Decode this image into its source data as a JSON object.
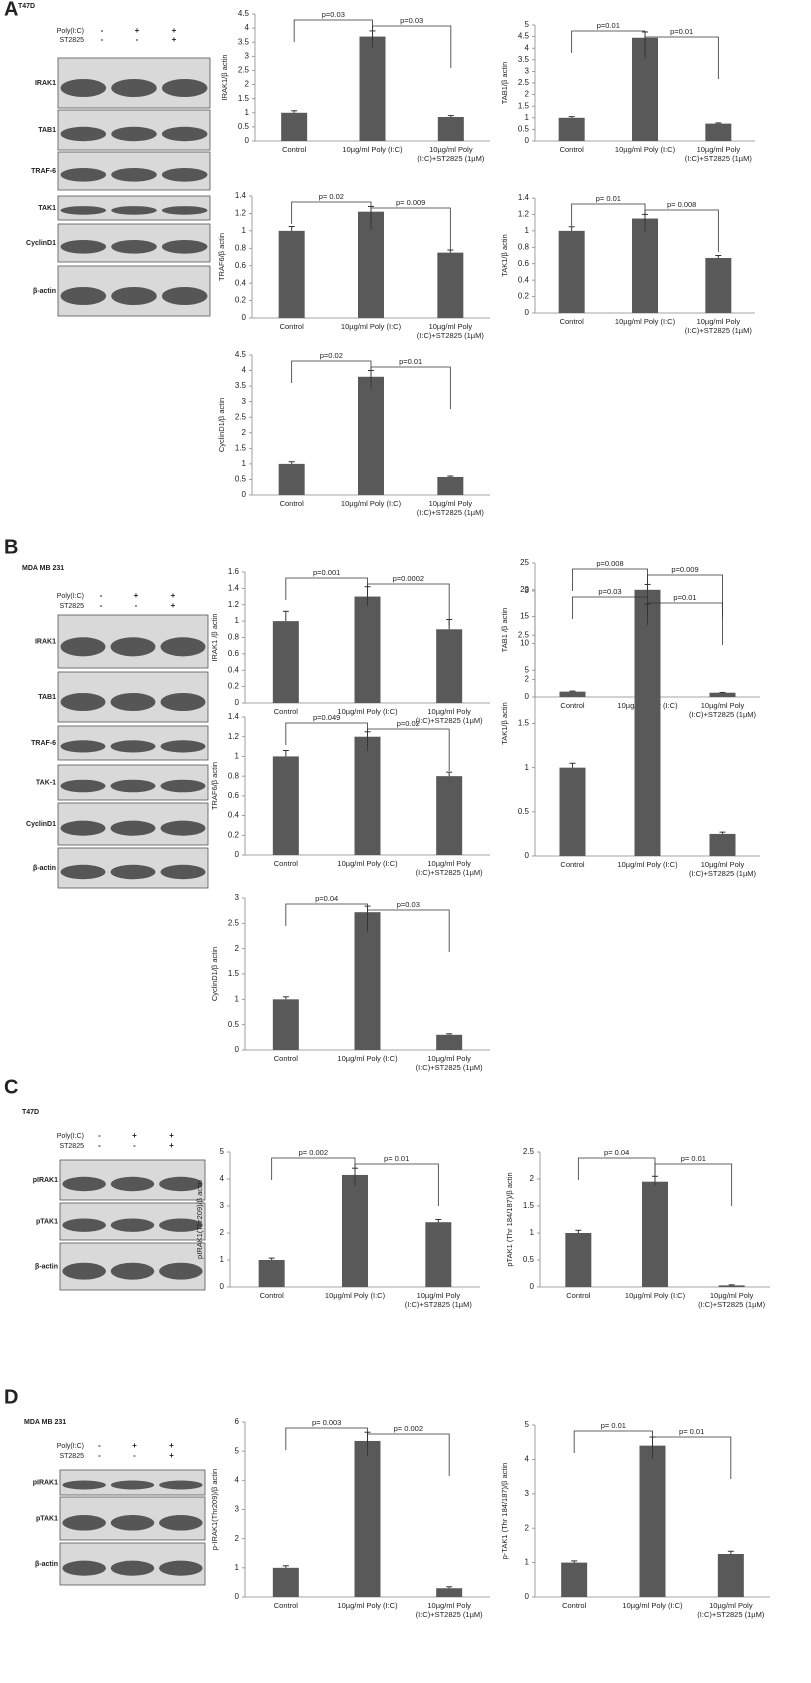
{
  "panels": [
    {
      "letter": "A",
      "cell_line": "T47D",
      "treatments": [
        {
          "name": "Poly(I:C)",
          "signs": [
            "-",
            "+",
            "+"
          ]
        },
        {
          "name": "ST2825",
          "signs": [
            "-",
            "-",
            "+"
          ]
        }
      ],
      "blot_rows": [
        "IRAK1",
        "TAB1",
        "TRAF-6",
        "TAK1",
        "CyclinD1",
        "β-actin"
      ]
    },
    {
      "letter": "B",
      "cell_line": "MDA MB 231",
      "treatments": [
        {
          "name": "Poly(I:C)",
          "signs": [
            "-",
            "+",
            "+"
          ]
        },
        {
          "name": "ST2825",
          "signs": [
            "-",
            "-",
            "+"
          ]
        }
      ],
      "blot_rows": [
        "IRAK1",
        "TAB1",
        "TRAF-6",
        "TAK-1",
        "CyclinD1",
        "β-actin"
      ]
    },
    {
      "letter": "C",
      "cell_line": "T47D",
      "treatments": [
        {
          "name": "Poly(I:C)",
          "signs": [
            "-",
            "+",
            "+"
          ]
        },
        {
          "name": "ST2825",
          "signs": [
            "-",
            "-",
            "+"
          ]
        }
      ],
      "blot_rows": [
        "pIRAK1",
        "pTAK1",
        "β-actin"
      ]
    },
    {
      "letter": "D",
      "cell_line": "MDA MB 231",
      "treatments": [
        {
          "name": "Poly(I:C)",
          "signs": [
            "-",
            "+",
            "+"
          ]
        },
        {
          "name": "ST2825",
          "signs": [
            "-",
            "-",
            "+"
          ]
        }
      ],
      "blot_rows": [
        "pIRAK1",
        "pTAK1",
        "β-actin"
      ]
    }
  ],
  "chart_data": [
    {
      "type": "bar",
      "y_label": "IRAK1/β actin",
      "categories": [
        "Control",
        "10µg/ml Poly (I:C)",
        "10µg/ml Poly (I:C)+ST2825 (1µM)"
      ],
      "values": [
        1.0,
        3.7,
        0.85
      ],
      "errors": [
        0.07,
        0.2,
        0.05
      ],
      "color": "#595959",
      "ylim": [
        0,
        4.5
      ],
      "yticks": [
        0,
        0.5,
        1,
        1.5,
        2,
        2.5,
        3,
        3.5,
        4,
        4.5
      ],
      "annotations": [
        "p=0.03",
        "p=0.03"
      ]
    },
    {
      "type": "bar",
      "y_label": "TAB1/β actin",
      "categories": [
        "Control",
        "10µg/ml Poly (I:C)",
        "10µg/ml Poly (I:C)+ST2825 (1µM)"
      ],
      "values": [
        1.0,
        4.45,
        0.75
      ],
      "errors": [
        0.05,
        0.25,
        0.03
      ],
      "color": "#595959",
      "ylim": [
        0,
        5
      ],
      "yticks": [
        0,
        0.5,
        1,
        1.5,
        2,
        2.5,
        3,
        3.5,
        4,
        4.5,
        5
      ],
      "annotations": [
        "p=0.01",
        "p=0.01"
      ]
    },
    {
      "type": "bar",
      "y_label": "TRAF6/β actin",
      "categories": [
        "Control",
        "10µg/ml Poly (I:C)",
        "10µg/ml Poly (I:C)+ST2825 (1µM)"
      ],
      "values": [
        1.0,
        1.22,
        0.75
      ],
      "errors": [
        0.05,
        0.06,
        0.03
      ],
      "color": "#595959",
      "ylim": [
        0,
        1.4
      ],
      "yticks": [
        0,
        0.2,
        0.4,
        0.6,
        0.8,
        1,
        1.2,
        1.4
      ],
      "annotations": [
        "p= 0.02",
        "p= 0.009"
      ]
    },
    {
      "type": "bar",
      "y_label": "TAK1/β actin",
      "categories": [
        "Control",
        "10µg/ml Poly (I:C)",
        "10µg/ml Poly (I:C)+ST2825 (1µM)"
      ],
      "values": [
        1.0,
        1.15,
        0.67
      ],
      "errors": [
        0.05,
        0.05,
        0.03
      ],
      "color": "#595959",
      "ylim": [
        0,
        1.4
      ],
      "yticks": [
        0,
        0.2,
        0.4,
        0.6,
        0.8,
        1,
        1.2,
        1.4
      ],
      "annotations": [
        "p= 0.01",
        "p= 0.008"
      ]
    },
    {
      "type": "bar",
      "y_label": "CyclinD1/β actin",
      "categories": [
        "Control",
        "10µg/ml Poly (I:C)",
        "10µg/ml Poly (I:C)+ST2825 (1µM)"
      ],
      "values": [
        1.0,
        3.8,
        0.58
      ],
      "errors": [
        0.07,
        0.2,
        0.03
      ],
      "color": "#595959",
      "ylim": [
        0,
        4.5
      ],
      "yticks": [
        0,
        0.5,
        1,
        1.5,
        2,
        2.5,
        3,
        3.5,
        4,
        4.5
      ],
      "annotations": [
        "p=0.02",
        "p=0.01"
      ]
    },
    {
      "type": "bar",
      "y_label": "IRAK1 /β actin",
      "categories": [
        "Control",
        "10µg/ml Poly (I:C)",
        "10µg/ml Poly (I:C)+ST2825 (1µM)"
      ],
      "values": [
        1.0,
        1.3,
        0.9
      ],
      "errors": [
        0.12,
        0.12,
        0.12
      ],
      "color": "#595959",
      "ylim": [
        0,
        1.6
      ],
      "yticks": [
        0,
        0.2,
        0.4,
        0.6,
        0.8,
        1,
        1.2,
        1.4,
        1.6
      ],
      "annotations": [
        "p=0.001",
        "p=0.0002"
      ]
    },
    {
      "type": "bar",
      "y_label": "TAB1 /β actin",
      "categories": [
        "Control",
        "10µg/ml Poly (I:C)",
        "10µg/ml Poly (I:C)+ST2825 (1µM)"
      ],
      "values": [
        1.0,
        20,
        0.8
      ],
      "errors": [
        0.1,
        1,
        0.05
      ],
      "color": "#595959",
      "ylim": [
        0,
        25
      ],
      "yticks": [
        0,
        5,
        10,
        15,
        20,
        25
      ],
      "annotations": [
        "p=0.008",
        "p=0.009"
      ]
    },
    {
      "type": "bar",
      "y_label": "TRAF6/β actin",
      "categories": [
        "Control",
        "10µg/ml Poly (I:C)",
        "10µg/ml Poly (I:C)+ST2825 (1µM)"
      ],
      "values": [
        1.0,
        1.2,
        0.8
      ],
      "errors": [
        0.06,
        0.05,
        0.04
      ],
      "color": "#595959",
      "ylim": [
        0,
        1.4
      ],
      "yticks": [
        0,
        0.2,
        0.4,
        0.6,
        0.8,
        1,
        1.2,
        1.4
      ],
      "annotations": [
        "p=0.049",
        "p=0.02"
      ]
    },
    {
      "type": "bar",
      "y_label": "TAK1/β actin",
      "categories": [
        "Control",
        "10µg/ml Poly (I:C)",
        "10µg/ml Poly (I:C)+ST2825 (1µM)"
      ],
      "values": [
        1.0,
        2.7,
        0.25
      ],
      "errors": [
        0.05,
        0.15,
        0.02
      ],
      "color": "#595959",
      "ylim": [
        0,
        3
      ],
      "yticks": [
        0,
        0.5,
        1,
        1.5,
        2,
        2.5,
        3
      ],
      "annotations": [
        "p=0.03",
        "p=0.01"
      ]
    },
    {
      "type": "bar",
      "y_label": "CyclinD1/β actin",
      "categories": [
        "Control",
        "10µg/ml Poly (I:C)",
        "10µg/ml Poly (I:C)+ST2825 (1µM)"
      ],
      "values": [
        1.0,
        2.72,
        0.3
      ],
      "errors": [
        0.05,
        0.12,
        0.02
      ],
      "color": "#595959",
      "ylim": [
        0,
        3
      ],
      "yticks": [
        0,
        0.5,
        1,
        1.5,
        2,
        2.5,
        3
      ],
      "annotations": [
        "p=0.04",
        "p=0.03"
      ]
    },
    {
      "type": "bar",
      "y_label": "pIRAK1(Thr209)/β actin",
      "categories": [
        "Control",
        "10µg/ml Poly (I:C)",
        "10µg/ml Poly (I:C)+ST2825 (1µM)"
      ],
      "values": [
        1.0,
        4.15,
        2.4
      ],
      "errors": [
        0.07,
        0.25,
        0.1
      ],
      "color": "#595959",
      "ylim": [
        0,
        5
      ],
      "yticks": [
        0,
        1,
        2,
        3,
        4,
        5
      ],
      "annotations": [
        "p= 0.002",
        "p= 0.01"
      ]
    },
    {
      "type": "bar",
      "y_label": "pTAK1 (Thr 184/187)/β actin",
      "categories": [
        "Control",
        "10µg/ml Poly (I:C)",
        "10µg/ml Poly (I:C)+ST2825 (1µM)"
      ],
      "values": [
        1.0,
        1.95,
        0.03
      ],
      "errors": [
        0.05,
        0.1,
        0.01
      ],
      "color": "#595959",
      "ylim": [
        0,
        2.5
      ],
      "yticks": [
        0,
        0.5,
        1,
        1.5,
        2,
        2.5
      ],
      "annotations": [
        "p= 0.04",
        "p= 0.01"
      ]
    },
    {
      "type": "bar",
      "y_label": "p-IRAK1(Thr209)/β actin",
      "categories": [
        "Control",
        "10µg/ml Poly (I:C)",
        "10µg/ml Poly (I:C)+ST2825 (1µM)"
      ],
      "values": [
        1.0,
        5.35,
        0.3
      ],
      "errors": [
        0.07,
        0.3,
        0.05
      ],
      "color": "#595959",
      "ylim": [
        0,
        6
      ],
      "yticks": [
        0,
        1,
        2,
        3,
        4,
        5,
        6
      ],
      "annotations": [
        "p= 0.003",
        "p= 0.002"
      ]
    },
    {
      "type": "bar",
      "y_label": "p-TAK1 (Thr 184/187)/β actin",
      "categories": [
        "Control",
        "10µg/ml Poly (I:C)",
        "10µg/ml Poly (I:C)+ST2825 (1µM)"
      ],
      "values": [
        1.0,
        4.4,
        1.25
      ],
      "errors": [
        0.05,
        0.25,
        0.08
      ],
      "color": "#595959",
      "ylim": [
        0,
        5
      ],
      "yticks": [
        0,
        1,
        2,
        3,
        4,
        5
      ],
      "annotations": [
        "p= 0.01",
        "p= 0.01"
      ]
    }
  ]
}
